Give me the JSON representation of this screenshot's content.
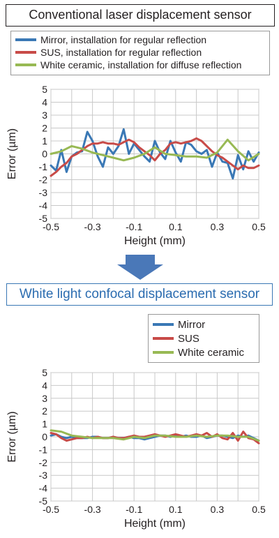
{
  "colors": {
    "mirror": "#3a78b5",
    "sus": "#c84b48",
    "ceramic": "#98b954",
    "title_blue": "#2b6cb0"
  },
  "arrow": {
    "icon": "down-arrow-icon",
    "color": "#4a78b8"
  },
  "chart_data": [
    {
      "type": "line",
      "title": "Conventional laser displacement sensor",
      "xlabel": "Height (mm)",
      "ylabel": "Error (µm)",
      "xlim": [
        -0.5,
        0.5
      ],
      "ylim": [
        -5,
        5
      ],
      "xticks": [
        "-0.5",
        "-0.3",
        "-0.1",
        "0.1",
        "0.3",
        "0.5"
      ],
      "yticks": [
        "5",
        "4",
        "3",
        "2",
        "1",
        "0",
        "-1",
        "-2",
        "-3",
        "-4",
        "-5"
      ],
      "grid": true,
      "legend_position": "top",
      "legend": [
        "Mirror, installation for regular reflection",
        "SUS, installation for regular reflection",
        "White ceramic, installation for diffuse reflection"
      ],
      "series": [
        {
          "name": "Mirror, installation for regular reflection",
          "color": "#3a78b5",
          "x": [
            -0.5,
            -0.475,
            -0.45,
            -0.425,
            -0.4,
            -0.375,
            -0.35,
            -0.325,
            -0.3,
            -0.275,
            -0.25,
            -0.225,
            -0.2,
            -0.175,
            -0.15,
            -0.125,
            -0.1,
            -0.075,
            -0.05,
            -0.025,
            0,
            0.025,
            0.05,
            0.075,
            0.1,
            0.125,
            0.15,
            0.175,
            0.2,
            0.225,
            0.25,
            0.275,
            0.3,
            0.325,
            0.35,
            0.375,
            0.4,
            0.425,
            0.45,
            0.475,
            0.5
          ],
          "y": [
            -0.9,
            -1.3,
            0.3,
            -1.4,
            -0.2,
            0.1,
            0.2,
            1.7,
            1.0,
            -0.2,
            -1.0,
            0.5,
            0.0,
            0.6,
            1.9,
            0.0,
            0.8,
            0.3,
            -0.2,
            -0.6,
            1.0,
            0.1,
            -0.4,
            1.0,
            0.1,
            -0.6,
            0.9,
            0.7,
            0.2,
            0.0,
            0.3,
            -1.0,
            0.1,
            -0.6,
            -0.7,
            -1.9,
            -0.1,
            -1.2,
            0.2,
            -0.6,
            0.1
          ]
        },
        {
          "name": "SUS, installation for regular reflection",
          "color": "#c84b48",
          "x": [
            -0.5,
            -0.475,
            -0.45,
            -0.425,
            -0.4,
            -0.375,
            -0.35,
            -0.325,
            -0.3,
            -0.275,
            -0.25,
            -0.225,
            -0.2,
            -0.175,
            -0.15,
            -0.125,
            -0.1,
            -0.075,
            -0.05,
            -0.025,
            0,
            0.025,
            0.05,
            0.075,
            0.1,
            0.125,
            0.15,
            0.175,
            0.2,
            0.225,
            0.25,
            0.275,
            0.3,
            0.325,
            0.35,
            0.375,
            0.4,
            0.425,
            0.45,
            0.475,
            0.5
          ],
          "y": [
            -1.7,
            -1.4,
            -1.0,
            -0.7,
            -0.2,
            0.0,
            0.3,
            0.6,
            0.8,
            0.8,
            0.9,
            0.8,
            0.8,
            0.7,
            0.9,
            1.1,
            0.9,
            0.5,
            0.2,
            -0.1,
            -0.5,
            0.0,
            0.3,
            0.8,
            0.9,
            0.8,
            0.9,
            1.0,
            1.2,
            1.0,
            0.6,
            0.2,
            -0.1,
            -0.3,
            -0.6,
            -0.9,
            -1.2,
            -0.9,
            -1.1,
            -1.1,
            -0.9
          ]
        },
        {
          "name": "White ceramic, installation for diffuse reflection",
          "color": "#98b954",
          "x": [
            -0.5,
            -0.45,
            -0.4,
            -0.35,
            -0.3,
            -0.25,
            -0.2,
            -0.15,
            -0.1,
            -0.05,
            0,
            0.05,
            0.1,
            0.15,
            0.2,
            0.25,
            0.3,
            0.35,
            0.4,
            0.45,
            0.5
          ],
          "y": [
            0.0,
            0.2,
            0.6,
            0.4,
            0.1,
            -0.1,
            -0.3,
            -0.5,
            -0.3,
            0.0,
            0.5,
            0.0,
            -0.1,
            -0.2,
            -0.2,
            -0.3,
            0.1,
            1.1,
            0.2,
            -0.5,
            0.0
          ]
        }
      ]
    },
    {
      "type": "line",
      "title": "White light confocal displacement sensor",
      "xlabel": "Height (mm)",
      "ylabel": "Error (µm)",
      "xlim": [
        -0.5,
        0.5
      ],
      "ylim": [
        -5,
        5
      ],
      "xticks": [
        "-0.5",
        "-0.3",
        "-0.1",
        "0.1",
        "0.3",
        "0.5"
      ],
      "yticks": [
        "5",
        "4",
        "3",
        "2",
        "1",
        "0",
        "-1",
        "-2",
        "-3",
        "-4",
        "-5"
      ],
      "grid": true,
      "legend_position": "top-right",
      "legend": [
        "Mirror",
        "SUS",
        "White ceramic"
      ],
      "series": [
        {
          "name": "Mirror",
          "color": "#3a78b5",
          "x": [
            -0.5,
            -0.475,
            -0.45,
            -0.425,
            -0.4,
            -0.375,
            -0.35,
            -0.325,
            -0.3,
            -0.275,
            -0.25,
            -0.225,
            -0.2,
            -0.175,
            -0.15,
            -0.125,
            -0.1,
            -0.075,
            -0.05,
            -0.025,
            0,
            0.025,
            0.05,
            0.075,
            0.1,
            0.125,
            0.15,
            0.175,
            0.2,
            0.225,
            0.25,
            0.275,
            0.3,
            0.325,
            0.35,
            0.375,
            0.4,
            0.425,
            0.45,
            0.475,
            0.5
          ],
          "y": [
            0.1,
            0.2,
            0.0,
            -0.1,
            0.0,
            -0.1,
            -0.1,
            -0.1,
            0.0,
            0.0,
            -0.1,
            -0.1,
            0.0,
            -0.1,
            -0.1,
            0.0,
            -0.1,
            -0.1,
            -0.2,
            -0.1,
            0.0,
            0.1,
            0.1,
            0.0,
            0.1,
            0.0,
            0.1,
            0.0,
            0.0,
            0.1,
            -0.1,
            0.0,
            0.1,
            0.1,
            0.0,
            -0.1,
            0.1,
            0.0,
            0.1,
            -0.1,
            -0.3
          ]
        },
        {
          "name": "SUS",
          "color": "#c84b48",
          "x": [
            -0.5,
            -0.475,
            -0.45,
            -0.425,
            -0.4,
            -0.375,
            -0.35,
            -0.325,
            -0.3,
            -0.275,
            -0.25,
            -0.225,
            -0.2,
            -0.175,
            -0.15,
            -0.125,
            -0.1,
            -0.075,
            -0.05,
            -0.025,
            0,
            0.025,
            0.05,
            0.075,
            0.1,
            0.125,
            0.15,
            0.175,
            0.2,
            0.225,
            0.25,
            0.275,
            0.3,
            0.325,
            0.35,
            0.375,
            0.4,
            0.425,
            0.45,
            0.475,
            0.5
          ],
          "y": [
            0.3,
            0.2,
            -0.1,
            -0.3,
            -0.2,
            -0.1,
            -0.1,
            0.0,
            -0.1,
            0.0,
            -0.1,
            -0.1,
            0.0,
            -0.1,
            -0.1,
            0.0,
            0.1,
            0.0,
            0.0,
            0.1,
            0.2,
            0.1,
            0.0,
            0.1,
            0.2,
            0.1,
            0.0,
            0.1,
            0.2,
            0.1,
            0.3,
            0.0,
            0.2,
            -0.1,
            -0.2,
            0.3,
            -0.3,
            0.4,
            -0.1,
            -0.2,
            -0.5
          ]
        },
        {
          "name": "White ceramic",
          "color": "#98b954",
          "x": [
            -0.5,
            -0.45,
            -0.4,
            -0.35,
            -0.3,
            -0.25,
            -0.2,
            -0.15,
            -0.1,
            -0.05,
            0,
            0.05,
            0.1,
            0.15,
            0.2,
            0.25,
            0.3,
            0.35,
            0.4,
            0.45,
            0.5
          ],
          "y": [
            0.5,
            0.4,
            0.1,
            0.0,
            -0.1,
            -0.1,
            -0.1,
            -0.2,
            0.0,
            -0.1,
            0.1,
            0.1,
            0.0,
            0.0,
            0.1,
            0.0,
            0.1,
            0.1,
            0.0,
            0.0,
            -0.3
          ]
        }
      ]
    }
  ]
}
